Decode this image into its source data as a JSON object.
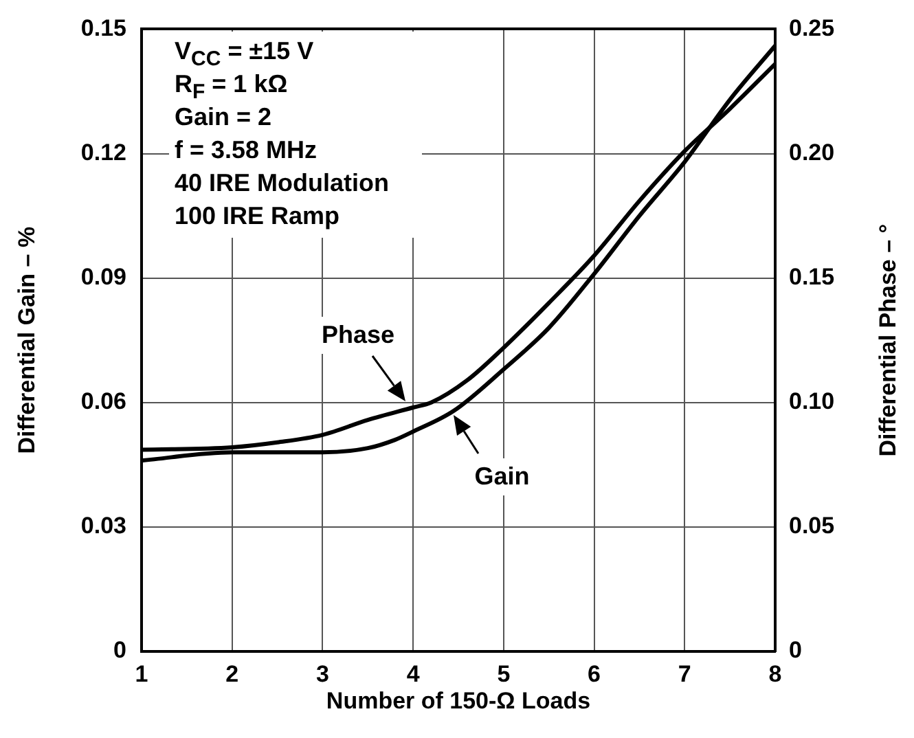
{
  "chart_data": {
    "type": "line",
    "xlabel": "Number of 150-Ω Loads",
    "ylabel": "Differential Gain – %",
    "y2label": "Differential Phase – °",
    "annotations": [
      "V$_{CC}$ = ±15 V",
      "R$_{F}$ = 1 kΩ",
      "Gain = 2",
      "f = 3.58 MHz",
      "40 IRE Modulation",
      "100 IRE Ramp"
    ],
    "xlim": [
      1,
      8
    ],
    "xticks": [
      1,
      2,
      3,
      4,
      5,
      6,
      7,
      8
    ],
    "ylim": [
      0,
      0.15
    ],
    "yticks": [
      0,
      0.03,
      0.06,
      0.09,
      0.12,
      0.15
    ],
    "y2lim": [
      0,
      0.25
    ],
    "y2ticks": [
      0,
      0.05,
      {
        "value": 0.1,
        "label": "0.10"
      },
      0.15,
      {
        "value": 0.2,
        "label": "0.20"
      },
      0.25
    ],
    "grid": true,
    "marker": "none",
    "series": [
      {
        "name": "Gain",
        "color": "#000000",
        "x": [
          1,
          2,
          2.5,
          3,
          3.5,
          3.8,
          4,
          4.45,
          5,
          5.5,
          6,
          6.5,
          7,
          7.5,
          8
        ],
        "values": [
          0.046,
          0.048,
          0.048,
          0.048,
          0.049,
          0.051,
          0.053,
          0.058,
          0.068,
          0.078,
          0.091,
          0.105,
          0.118,
          0.133,
          0.146
        ]
      },
      {
        "name": "Phase",
        "color": "#000000",
        "axis": "y2",
        "x": [
          1,
          2,
          2.5,
          3,
          3.5,
          4,
          4.2,
          4.6,
          5,
          5.5,
          6,
          6.5,
          7,
          7.5,
          8
        ],
        "values": [
          0.081,
          0.082,
          0.084,
          0.087,
          0.093,
          0.098,
          0.1,
          0.109,
          0.122,
          0.14,
          0.159,
          0.181,
          0.201,
          0.218,
          0.236
        ]
      }
    ]
  }
}
